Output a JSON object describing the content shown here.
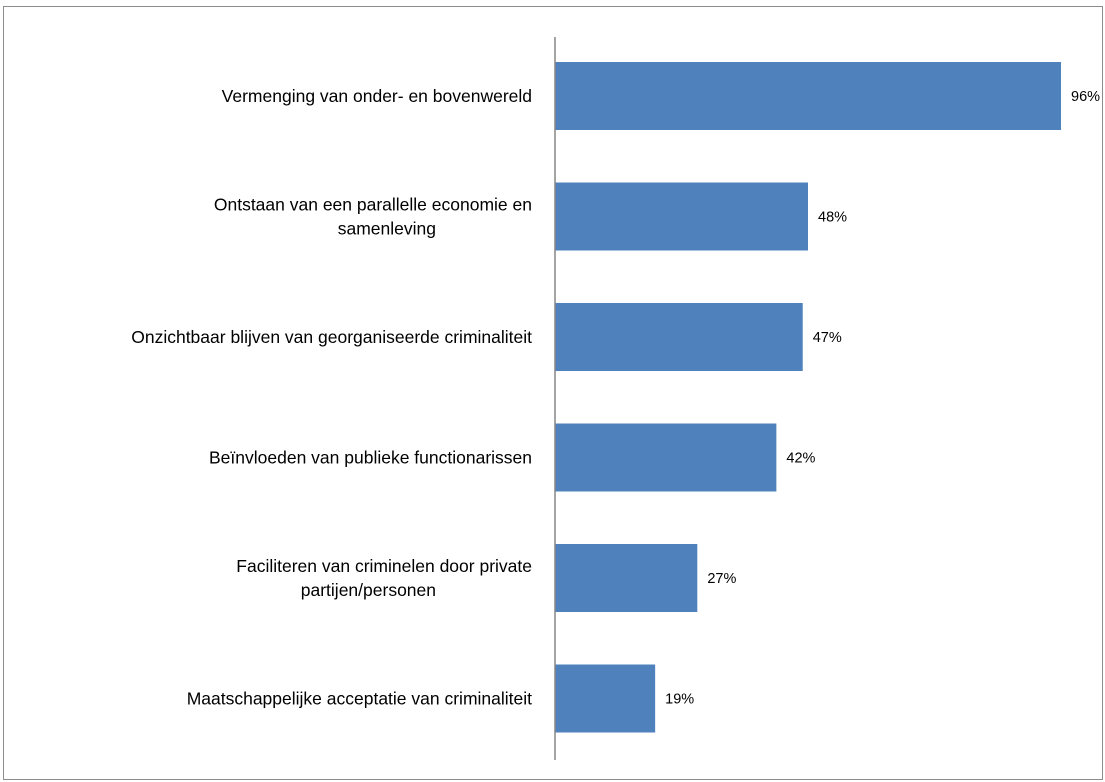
{
  "chart_data": {
    "type": "bar",
    "orientation": "horizontal",
    "categories": [
      [
        "Vermenging van onder- en bovenwereld"
      ],
      [
        "Ontstaan van een parallelle economie en",
        "samenleving"
      ],
      [
        "Onzichtbaar blijven van georganiseerde criminaliteit"
      ],
      [
        "Beïnvloeden van publieke functionarissen"
      ],
      [
        "Faciliteren van criminelen door private",
        "partijen/personen"
      ],
      [
        "Maatschappelijke acceptatie van criminaliteit"
      ]
    ],
    "values": [
      96,
      48,
      47,
      42,
      27,
      19
    ],
    "value_labels": [
      "96%",
      "48%",
      "47%",
      "42%",
      "27%",
      "19%"
    ],
    "unit": "%",
    "xlim": [
      0,
      100
    ],
    "title": "",
    "xlabel": "",
    "ylabel": "",
    "grid": false,
    "legend": "none",
    "bar_color": "#4f81bd",
    "axis_color": "#868686"
  }
}
